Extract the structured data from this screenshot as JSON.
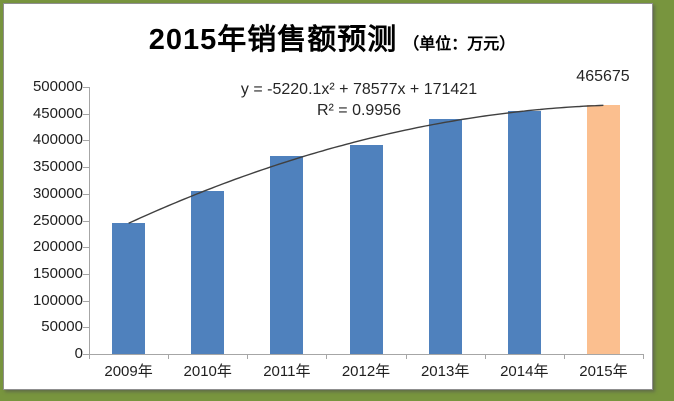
{
  "title": {
    "main": "2015年销售额预测",
    "unit": "（单位：万元）"
  },
  "annotation": {
    "equation": "y = -5220.1x² + 78577x + 171421",
    "r_squared": "R² = 0.9956"
  },
  "chart_data": {
    "type": "bar",
    "title": "2015年销售额预测（单位：万元）",
    "categories": [
      "2009年",
      "2010年",
      "2011年",
      "2012年",
      "2013年",
      "2014年",
      "2015年"
    ],
    "series": [
      {
        "name": "销售额预测",
        "values": [
          245000,
          305000,
          371000,
          392000,
          440000,
          455000,
          465675
        ]
      }
    ],
    "bar_colors": [
      "#4F81BD",
      "#4F81BD",
      "#4F81BD",
      "#4F81BD",
      "#4F81BD",
      "#4F81BD",
      "#FBBF8F"
    ],
    "highlight_index": 6,
    "data_labels": [
      {
        "index": 6,
        "text": "465675"
      }
    ],
    "trendline": {
      "type": "polynomial",
      "order": 2,
      "coefficients": {
        "a": -5220.1,
        "b": 78577,
        "c": 171421
      },
      "r2": 0.9956,
      "color": "#404040"
    },
    "xlabel": "",
    "ylabel": "",
    "ylim": [
      0,
      500000
    ],
    "ytick_step": 50000,
    "ytick_labels": [
      "0",
      "50000",
      "100000",
      "150000",
      "200000",
      "250000",
      "300000",
      "350000",
      "400000",
      "450000",
      "500000"
    ],
    "grid": false,
    "legend": false,
    "colors": {
      "bar_blue": "#4F81BD",
      "bar_orange": "#FBBF8F",
      "axis": "#A6A6A6",
      "frame_green": "#78953E",
      "text": "#1f1f1f"
    }
  }
}
